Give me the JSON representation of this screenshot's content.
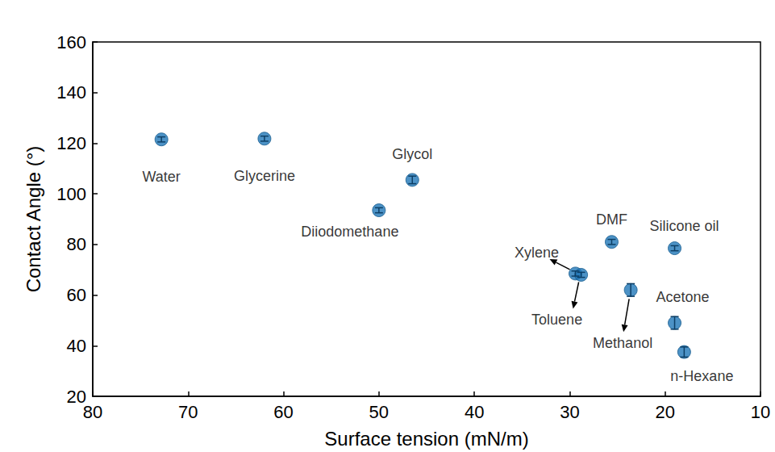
{
  "chart_data": {
    "type": "scatter",
    "x_label": "Surface tension (mN/m)",
    "y_label": "Contact Angle (°)",
    "color": "#1f77b8",
    "marker": "circle",
    "grid": false,
    "labels": [
      "Water",
      "Glycerine",
      "Diiodomethane",
      "Glycol",
      "Xylene",
      "Toluene",
      "DMF",
      "Methanol",
      "Silicone oil",
      "Acetone",
      "n-Hexane"
    ],
    "x": [
      72.8,
      62.0,
      50.0,
      46.5,
      29.4,
      28.8,
      25.6,
      23.6,
      19.0,
      19.0,
      18.0
    ],
    "values": [
      121.5,
      121.8,
      93.5,
      105.5,
      68.5,
      68.0,
      81.0,
      62.0,
      78.5,
      49.0,
      37.5
    ],
    "errors": [
      1.0,
      1.0,
      1.0,
      1.5,
      1.0,
      1.0,
      1.0,
      2.5,
      1.0,
      2.5,
      2.0
    ],
    "xlim": [
      80,
      10
    ],
    "xticks": [
      80,
      70,
      60,
      50,
      40,
      30,
      20,
      10
    ],
    "ylim": [
      20,
      160
    ],
    "yticks": [
      20,
      40,
      60,
      80,
      100,
      120,
      140,
      160
    ]
  }
}
